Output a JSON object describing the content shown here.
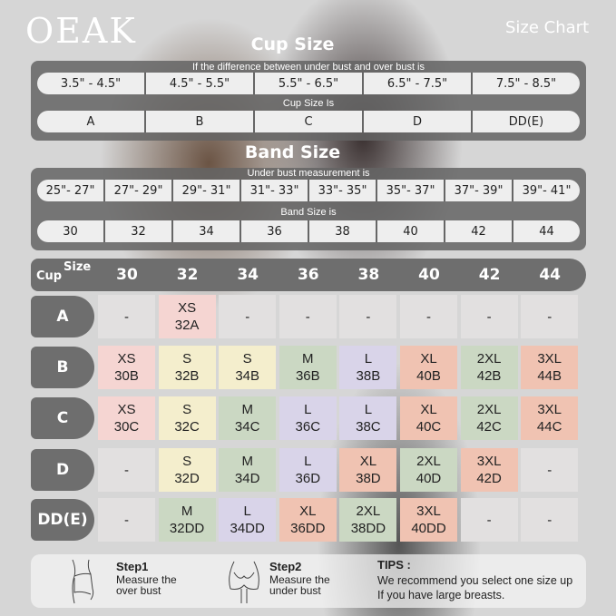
{
  "brand": "OEAK",
  "heading": "Size Chart",
  "cup_section": {
    "title": "Cup Size",
    "diff_label": "If the  difference between under bust and over bust is",
    "ranges": [
      "3.5\" - 4.5\"",
      "4.5\" - 5.5\"",
      "5.5\" - 6.5\"",
      "6.5\" - 7.5\"",
      "7.5\" - 8.5\""
    ],
    "cup_label": "Cup Size Is",
    "cups": [
      "A",
      "B",
      "C",
      "D",
      "DD(E)"
    ]
  },
  "band_section": {
    "title": "Band Size",
    "under_label": "Under bust measurement is",
    "ranges": [
      "25\"- 27\"",
      "27\"- 29\"",
      "29\"- 31\"",
      "31\"- 33\"",
      "33\"- 35\"",
      "35\"- 37\"",
      "37\"- 39\"",
      "39\"- 41\""
    ],
    "band_label": "Band Size is",
    "bands": [
      "30",
      "32",
      "34",
      "36",
      "38",
      "40",
      "42",
      "44"
    ]
  },
  "grid": {
    "corner_size": "Size",
    "corner_cup": "Cup",
    "columns": [
      "30",
      "32",
      "34",
      "36",
      "38",
      "40",
      "42",
      "44"
    ],
    "colors": {
      "pink": "#f5d5d2",
      "yellow": "#f4eecd",
      "green": "#cbd8c3",
      "lavender": "#d9d4e9",
      "salmon": "#f0c3b2",
      "empty": "#e2e0e0"
    },
    "rows": [
      {
        "cup": "A",
        "cells": [
          [
            "-",
            "",
            "empty"
          ],
          [
            "XS",
            "32A",
            "pink"
          ],
          [
            "-",
            "",
            "empty"
          ],
          [
            "-",
            "",
            "empty"
          ],
          [
            "-",
            "",
            "empty"
          ],
          [
            "-",
            "",
            "empty"
          ],
          [
            "-",
            "",
            "empty"
          ],
          [
            "-",
            "",
            "empty"
          ]
        ]
      },
      {
        "cup": "B",
        "cells": [
          [
            "XS",
            "30B",
            "pink"
          ],
          [
            "S",
            "32B",
            "yellow"
          ],
          [
            "S",
            "34B",
            "yellow"
          ],
          [
            "M",
            "36B",
            "green"
          ],
          [
            "L",
            "38B",
            "lavender"
          ],
          [
            "XL",
            "40B",
            "salmon"
          ],
          [
            "2XL",
            "42B",
            "green"
          ],
          [
            "3XL",
            "44B",
            "salmon"
          ]
        ]
      },
      {
        "cup": "C",
        "cells": [
          [
            "XS",
            "30C",
            "pink"
          ],
          [
            "S",
            "32C",
            "yellow"
          ],
          [
            "M",
            "34C",
            "green"
          ],
          [
            "L",
            "36C",
            "lavender"
          ],
          [
            "L",
            "38C",
            "lavender"
          ],
          [
            "XL",
            "40C",
            "salmon"
          ],
          [
            "2XL",
            "42C",
            "green"
          ],
          [
            "3XL",
            "44C",
            "salmon"
          ]
        ]
      },
      {
        "cup": "D",
        "cells": [
          [
            "-",
            "",
            "empty"
          ],
          [
            "S",
            "32D",
            "yellow"
          ],
          [
            "M",
            "34D",
            "green"
          ],
          [
            "L",
            "36D",
            "lavender"
          ],
          [
            "XL",
            "38D",
            "salmon"
          ],
          [
            "2XL",
            "40D",
            "green"
          ],
          [
            "3XL",
            "42D",
            "salmon"
          ],
          [
            "-",
            "",
            "empty"
          ]
        ]
      },
      {
        "cup": "DD(E)",
        "cells": [
          [
            "-",
            "",
            "empty"
          ],
          [
            "M",
            "32DD",
            "green"
          ],
          [
            "L",
            "34DD",
            "lavender"
          ],
          [
            "XL",
            "36DD",
            "salmon"
          ],
          [
            "2XL",
            "38DD",
            "green"
          ],
          [
            "3XL",
            "40DD",
            "salmon"
          ],
          [
            "-",
            "",
            "empty"
          ],
          [
            "-",
            "",
            "empty"
          ]
        ]
      }
    ]
  },
  "steps": [
    {
      "title": "Step1",
      "text1": "Measure the",
      "text2": "over bust",
      "icon": "over-bust-figure-icon"
    },
    {
      "title": "Step2",
      "text1": "Measure the",
      "text2": "under bust",
      "icon": "under-bust-figure-icon"
    }
  ],
  "tips": {
    "title": "TIPS :",
    "line1": "We recommend you select one size up",
    "line2": "If you have large breasts."
  }
}
